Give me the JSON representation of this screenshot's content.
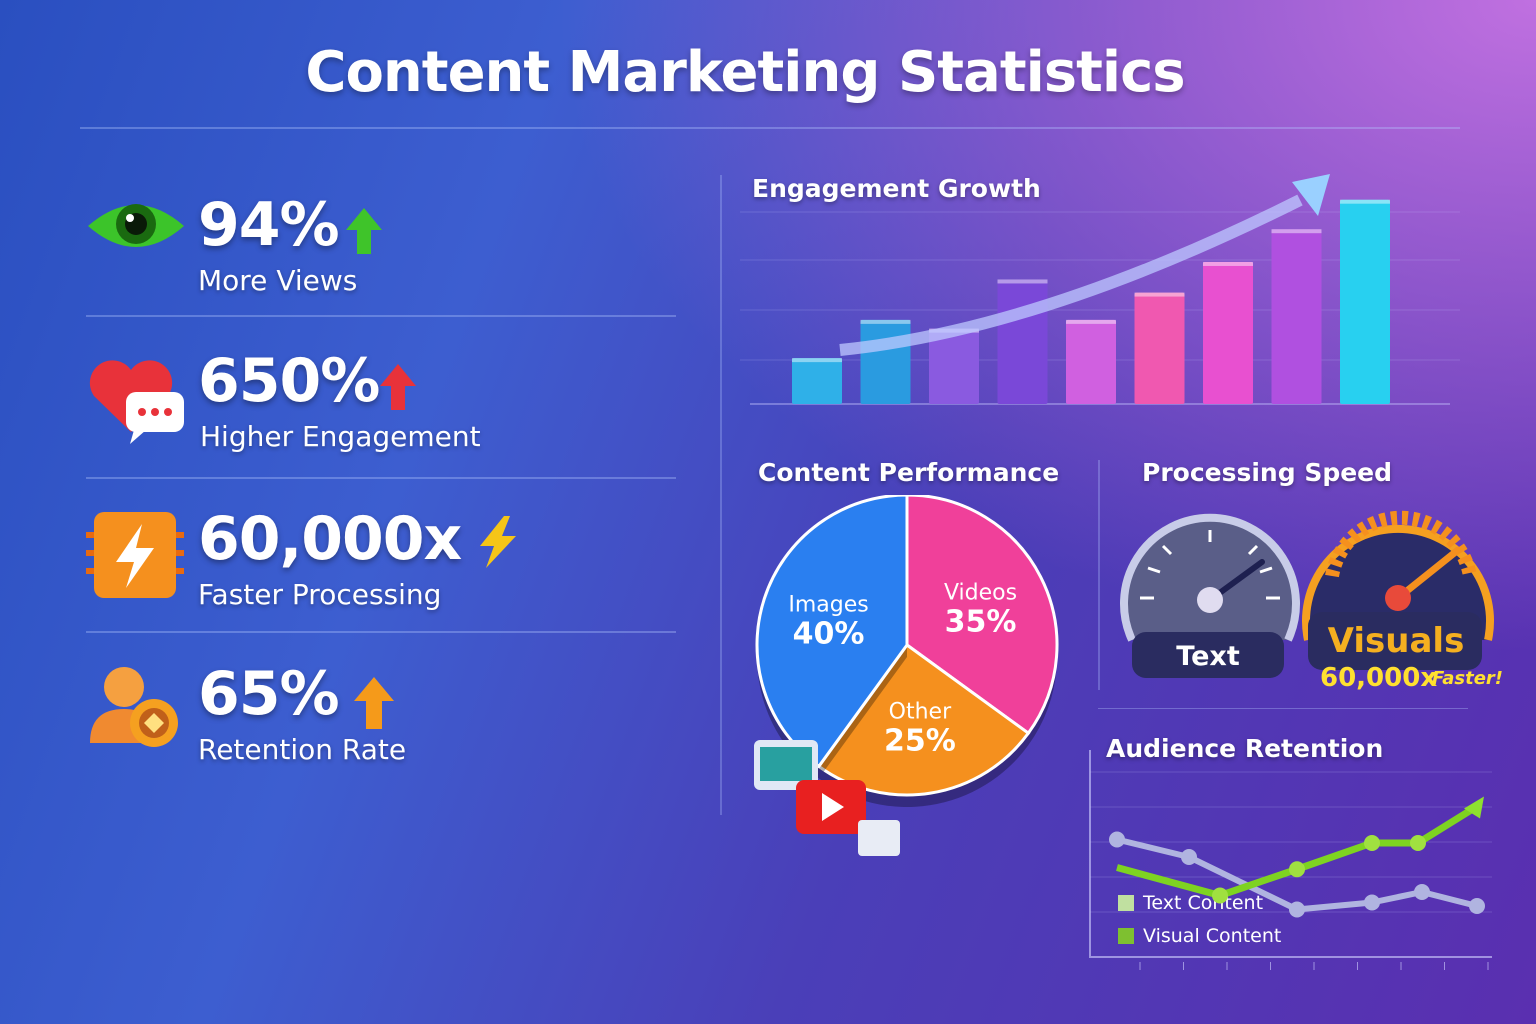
{
  "title": "Content Marketing Statistics",
  "stats": [
    {
      "value": "94%",
      "label": "More Views",
      "icon": "eye-icon",
      "arrow_color": "#3fc42a"
    },
    {
      "value": "650%",
      "label": "Higher Engagement",
      "icon": "heart-chat-icon",
      "arrow_color": "#e8323a"
    },
    {
      "value": "60,000x",
      "label": "Faster Processing",
      "icon": "lightning-chip-icon",
      "arrow_color": "#f5c518"
    },
    {
      "value": "65%",
      "label": "Retention Rate",
      "icon": "user-badge-icon",
      "arrow_color": "#f59a1a"
    }
  ],
  "chart_data": [
    {
      "type": "bar",
      "title": "Engagement Growth",
      "values": [
        42,
        77,
        69,
        114,
        77,
        102,
        130,
        160,
        187
      ],
      "colors": [
        "#2fb0e8",
        "#2a9be0",
        "#8a5ae0",
        "#7a48d8",
        "#d060e0",
        "#f058b0",
        "#e850d0",
        "#b050e0",
        "#28d0f0"
      ],
      "trend_arrow": true,
      "grid": true
    },
    {
      "type": "pie",
      "title": "Content Performance",
      "slices": [
        {
          "label": "Images",
          "value": 40,
          "display": "40%",
          "color": "#2a7ff0"
        },
        {
          "label": "Videos",
          "value": 35,
          "display": "35%",
          "color": "#f0409a"
        },
        {
          "label": "Other",
          "value": 25,
          "display": "25%",
          "color": "#f5901e"
        }
      ]
    },
    {
      "type": "gauge",
      "title": "Processing Speed",
      "gauges": [
        {
          "label": "Text",
          "level": 0.75,
          "color": "#8a8eb0"
        },
        {
          "label": "Visuals",
          "level": 0.85,
          "color": "#f5a020",
          "note_value": "60,000x",
          "note_text": "Faster!"
        }
      ]
    },
    {
      "type": "line",
      "title": "Audience Retention",
      "grid": true,
      "series": [
        {
          "name": "Text Content",
          "color": "#b0b4e0",
          "values": [
            82,
            72,
            42,
            46,
            52,
            44
          ]
        },
        {
          "name": "Visual Content",
          "color": "#7ed321",
          "values": [
            66,
            50,
            65,
            80,
            80,
            102
          ]
        }
      ],
      "legend_position": "bottom-left"
    }
  ]
}
